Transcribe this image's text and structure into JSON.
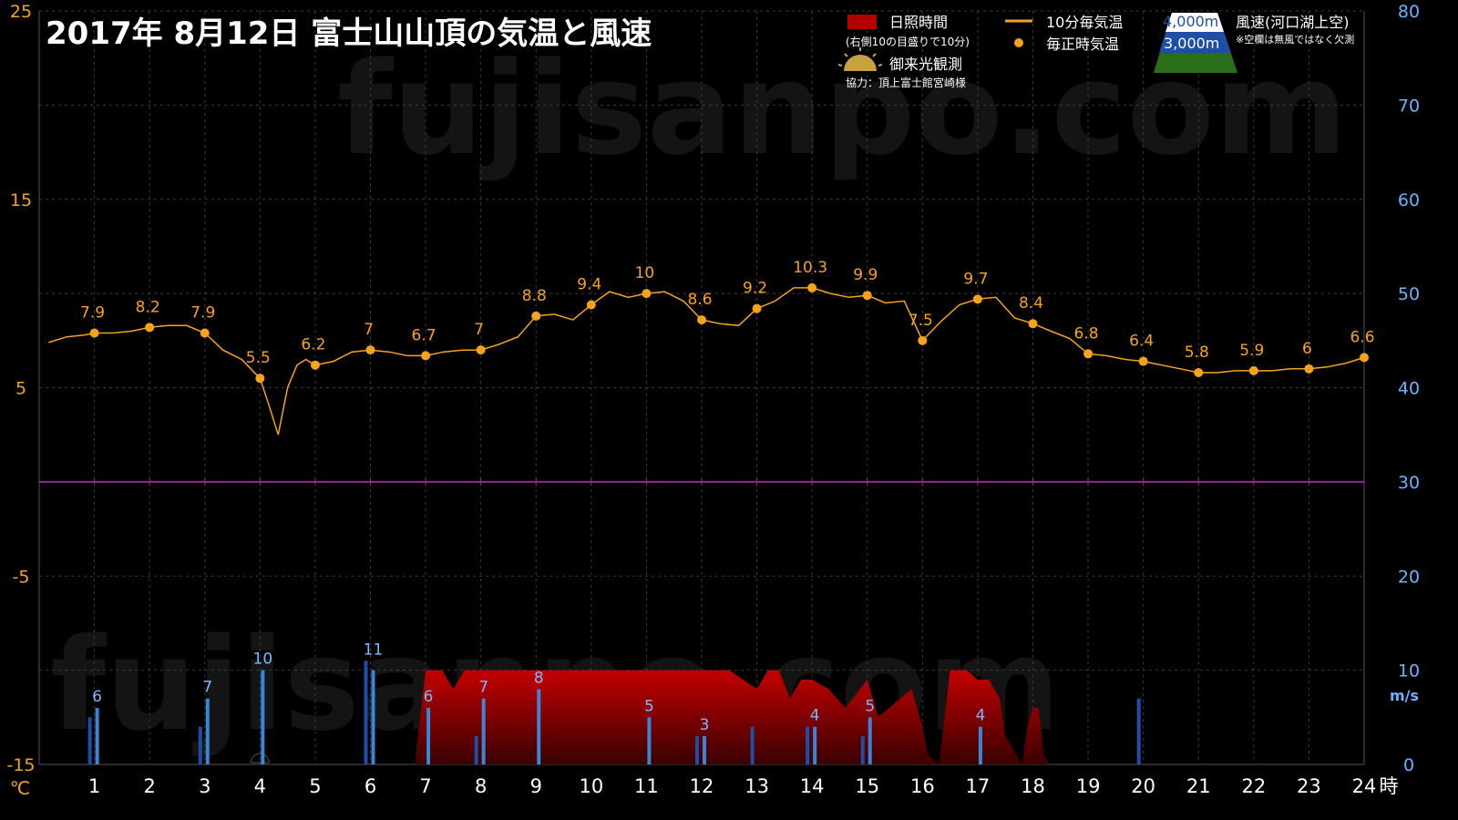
{
  "title": "2017年  8月12日   富士山山頂の気温と風速",
  "watermark": "fujisanpo.com",
  "legend": {
    "sunshine_label": "日照時間",
    "sunshine_note": "(右側10の目盛りで10分)",
    "temp10_label": "10分毎気温",
    "temp_hourly_label": "毎正時気温",
    "sunrise_label": "御来光観測",
    "credit": "協力：頂上富士館宮崎様",
    "wind_4000_label": "4,000m",
    "wind_3000_label": "3,000m",
    "wind_title": "風速(河口湖上空)",
    "wind_note": "※空欄は無風ではなく欠測"
  },
  "colors": {
    "temp": "#f7a21b",
    "wind_4000": "#1d4fa8",
    "wind_3000": "#3a86d6",
    "sunshine": "#b30000",
    "zero_line": "#a020a0",
    "left_axis": "#f7a21b",
    "right_axis": "#6bb2ff"
  },
  "chart_data": {
    "type": "line",
    "title": "2017年  8月12日   富士山山頂の気温と風速",
    "xlabel": "時",
    "left_axis_unit": "℃",
    "right_axis_unit": "m/s",
    "xlim": [
      0,
      24
    ],
    "x_ticks": [
      1,
      2,
      3,
      4,
      5,
      6,
      7,
      8,
      9,
      10,
      11,
      12,
      13,
      14,
      15,
      16,
      17,
      18,
      19,
      20,
      21,
      22,
      23,
      24
    ],
    "left_ylim": [
      -15,
      25
    ],
    "left_ticks": [
      25,
      15,
      5,
      -5,
      -15
    ],
    "right_ylim": [
      0,
      80
    ],
    "right_ticks": [
      80,
      70,
      60,
      50,
      40,
      30,
      20,
      10,
      0
    ],
    "grid": true,
    "temp_10min": [
      [
        0.17,
        7.4
      ],
      [
        0.5,
        7.7
      ],
      [
        0.83,
        7.8
      ],
      [
        1,
        7.9
      ],
      [
        1.33,
        7.9
      ],
      [
        1.67,
        8.0
      ],
      [
        2,
        8.2
      ],
      [
        2.33,
        8.3
      ],
      [
        2.67,
        8.3
      ],
      [
        3,
        7.9
      ],
      [
        3.33,
        7.0
      ],
      [
        3.67,
        6.5
      ],
      [
        4,
        5.5
      ],
      [
        4.17,
        4.0
      ],
      [
        4.33,
        2.5
      ],
      [
        4.5,
        5.0
      ],
      [
        4.67,
        6.2
      ],
      [
        4.83,
        6.5
      ],
      [
        5,
        6.2
      ],
      [
        5.33,
        6.4
      ],
      [
        5.67,
        6.9
      ],
      [
        6,
        7.0
      ],
      [
        6.33,
        6.9
      ],
      [
        6.67,
        6.7
      ],
      [
        7,
        6.7
      ],
      [
        7.33,
        6.9
      ],
      [
        7.67,
        7.0
      ],
      [
        8,
        7.0
      ],
      [
        8.33,
        7.3
      ],
      [
        8.67,
        7.7
      ],
      [
        9,
        8.8
      ],
      [
        9.33,
        8.9
      ],
      [
        9.67,
        8.6
      ],
      [
        10,
        9.4
      ],
      [
        10.33,
        10.1
      ],
      [
        10.67,
        9.8
      ],
      [
        11,
        10.0
      ],
      [
        11.33,
        10.1
      ],
      [
        11.67,
        9.6
      ],
      [
        12,
        8.6
      ],
      [
        12.33,
        8.4
      ],
      [
        12.67,
        8.3
      ],
      [
        13,
        9.2
      ],
      [
        13.33,
        9.6
      ],
      [
        13.67,
        10.3
      ],
      [
        14,
        10.3
      ],
      [
        14.33,
        10.0
      ],
      [
        14.67,
        9.8
      ],
      [
        15,
        9.9
      ],
      [
        15.33,
        9.5
      ],
      [
        15.67,
        9.6
      ],
      [
        16,
        7.5
      ],
      [
        16.33,
        8.5
      ],
      [
        16.67,
        9.4
      ],
      [
        17,
        9.7
      ],
      [
        17.33,
        9.8
      ],
      [
        17.67,
        8.7
      ],
      [
        18,
        8.4
      ],
      [
        18.33,
        8.0
      ],
      [
        18.67,
        7.6
      ],
      [
        19,
        6.8
      ],
      [
        19.33,
        6.7
      ],
      [
        19.67,
        6.5
      ],
      [
        20,
        6.4
      ],
      [
        20.33,
        6.2
      ],
      [
        20.67,
        6.0
      ],
      [
        21,
        5.8
      ],
      [
        21.33,
        5.8
      ],
      [
        21.67,
        5.9
      ],
      [
        22,
        5.9
      ],
      [
        22.33,
        5.9
      ],
      [
        22.67,
        6.0
      ],
      [
        23,
        6.0
      ],
      [
        23.33,
        6.1
      ],
      [
        23.67,
        6.3
      ],
      [
        24,
        6.6
      ]
    ],
    "temp_hourly": [
      {
        "hour": 1,
        "value": 7.9
      },
      {
        "hour": 2,
        "value": 8.2
      },
      {
        "hour": 3,
        "value": 7.9
      },
      {
        "hour": 4,
        "value": 5.5
      },
      {
        "hour": 5,
        "value": 6.2
      },
      {
        "hour": 6,
        "value": 7
      },
      {
        "hour": 7,
        "value": 6.7
      },
      {
        "hour": 8,
        "value": 7
      },
      {
        "hour": 9,
        "value": 8.8
      },
      {
        "hour": 10,
        "value": 9.4
      },
      {
        "hour": 11,
        "value": 10
      },
      {
        "hour": 12,
        "value": 8.6
      },
      {
        "hour": 13,
        "value": 9.2
      },
      {
        "hour": 14,
        "value": 10.3
      },
      {
        "hour": 15,
        "value": 9.9
      },
      {
        "hour": 16,
        "value": 7.5
      },
      {
        "hour": 17,
        "value": 9.7
      },
      {
        "hour": 18,
        "value": 8.4
      },
      {
        "hour": 19,
        "value": 6.8
      },
      {
        "hour": 20,
        "value": 6.4
      },
      {
        "hour": 21,
        "value": 5.8
      },
      {
        "hour": 22,
        "value": 5.9
      },
      {
        "hour": 23,
        "value": 6
      },
      {
        "hour": 24,
        "value": 6.6
      }
    ],
    "wind": [
      {
        "hour": 1,
        "w4000": 5,
        "w3000": 6,
        "label": "6"
      },
      {
        "hour": 3,
        "w4000": 4,
        "w3000": 7,
        "label": "7"
      },
      {
        "hour": 4,
        "w4000": null,
        "w3000": 10,
        "label": "10"
      },
      {
        "hour": 6,
        "w4000": 11,
        "w3000": 10,
        "label": "11"
      },
      {
        "hour": 7,
        "w4000": null,
        "w3000": 6,
        "label": "6"
      },
      {
        "hour": 8,
        "w4000": 3,
        "w3000": 7,
        "label": "7"
      },
      {
        "hour": 9,
        "w4000": null,
        "w3000": 8,
        "label": "8"
      },
      {
        "hour": 11,
        "w4000": null,
        "w3000": 5,
        "label": "5"
      },
      {
        "hour": 12,
        "w4000": 3,
        "w3000": 3,
        "label": "3"
      },
      {
        "hour": 13,
        "w4000": 4,
        "w3000": null,
        "label": ""
      },
      {
        "hour": 14,
        "w4000": 4,
        "w3000": 4,
        "label": "4"
      },
      {
        "hour": 15,
        "w4000": 3,
        "w3000": 5,
        "label": "5"
      },
      {
        "hour": 17,
        "w4000": null,
        "w3000": 4,
        "label": "4"
      },
      {
        "hour": 20,
        "w4000": 7,
        "w3000": null,
        "label": ""
      }
    ],
    "sunshine_minutes": [
      [
        6.0,
        0
      ],
      [
        6.5,
        0
      ],
      [
        6.8,
        0
      ],
      [
        7.0,
        10
      ],
      [
        7.3,
        10
      ],
      [
        7.5,
        8
      ],
      [
        7.7,
        10
      ],
      [
        8.0,
        10
      ],
      [
        8.5,
        10
      ],
      [
        9,
        10
      ],
      [
        10,
        10
      ],
      [
        11,
        10
      ],
      [
        12,
        10
      ],
      [
        12.5,
        10
      ],
      [
        13.0,
        8
      ],
      [
        13.2,
        10
      ],
      [
        13.4,
        10
      ],
      [
        13.6,
        7
      ],
      [
        13.8,
        9
      ],
      [
        14.0,
        9
      ],
      [
        14.3,
        8
      ],
      [
        14.6,
        6
      ],
      [
        15.0,
        9
      ],
      [
        15.2,
        5
      ],
      [
        15.6,
        7
      ],
      [
        15.8,
        8
      ],
      [
        16.0,
        4
      ],
      [
        16.1,
        1
      ],
      [
        16.3,
        0
      ],
      [
        16.5,
        10
      ],
      [
        16.8,
        10
      ],
      [
        17.0,
        9
      ],
      [
        17.2,
        9
      ],
      [
        17.4,
        7
      ],
      [
        17.5,
        3
      ],
      [
        17.6,
        2
      ],
      [
        17.8,
        0
      ],
      [
        17.9,
        4
      ],
      [
        18.0,
        6
      ],
      [
        18.1,
        6
      ],
      [
        18.2,
        1
      ],
      [
        18.3,
        0
      ]
    ],
    "sunrise_hour": 4
  }
}
